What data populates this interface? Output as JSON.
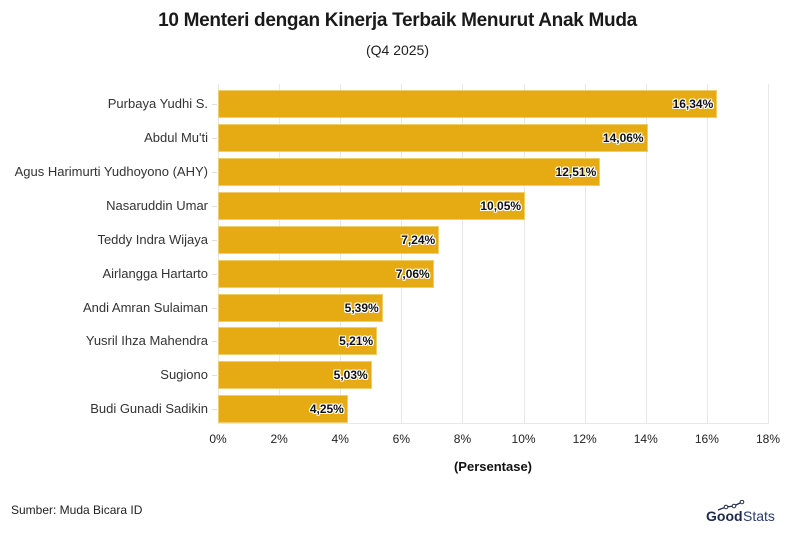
{
  "header": {
    "title": "10 Menteri dengan Kinerja Terbaik Menurut Anak Muda",
    "subtitle": "(Q4 2025)"
  },
  "footer": {
    "source": "Sumber: Muda Bicara ID",
    "logo_good": "Good",
    "logo_stats": "Stats"
  },
  "colors": {
    "bar": "#e6ab12",
    "grid": "#e8e8e8",
    "logo": "#1d2a4d"
  },
  "chart_data": {
    "type": "bar",
    "orientation": "horizontal",
    "title": "10 Menteri dengan Kinerja Terbaik Menurut Anak Muda",
    "subtitle": "(Q4 2025)",
    "xlabel": "(Persentase)",
    "ylabel": "",
    "xlim": [
      0,
      18
    ],
    "grid": true,
    "legend": null,
    "categories": [
      "Purbaya Yudhi S.",
      "Abdul Mu'ti",
      "Agus Harimurti Yudhoyono (AHY)",
      "Nasaruddin Umar",
      "Teddy Indra Wijaya",
      "Airlangga Hartarto",
      "Andi Amran Sulaiman",
      "Yusril Ihza Mahendra",
      "Sugiono",
      "Budi Gunadi Sadikin"
    ],
    "values": [
      16.34,
      14.06,
      12.51,
      10.05,
      7.24,
      7.06,
      5.39,
      5.21,
      5.03,
      4.25
    ],
    "value_labels": [
      "16,34%",
      "14,06%",
      "12,51%",
      "10,05%",
      "7,24%",
      "7,06%",
      "5,39%",
      "5,21%",
      "5,03%",
      "4,25%"
    ],
    "x_ticks": [
      "0%",
      "2%",
      "4%",
      "6%",
      "8%",
      "10%",
      "12%",
      "14%",
      "16%",
      "18%"
    ],
    "source": "Sumber: Muda Bicara ID"
  }
}
